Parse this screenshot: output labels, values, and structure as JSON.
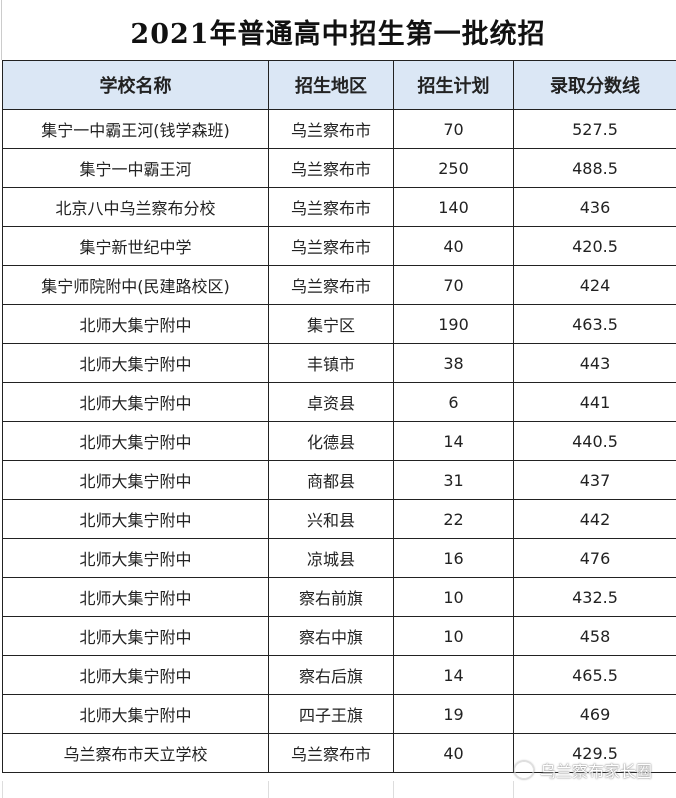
{
  "title": "2021年普通高中招生第一批统招",
  "columns": [
    "学校名称",
    "招生地区",
    "招生计划",
    "录取分数线"
  ],
  "rows": [
    [
      "集宁一中霸王河(钱学森班)",
      "乌兰察布市",
      "70",
      "527.5"
    ],
    [
      "集宁一中霸王河",
      "乌兰察布市",
      "250",
      "488.5"
    ],
    [
      "北京八中乌兰察布分校",
      "乌兰察布市",
      "140",
      "436"
    ],
    [
      "集宁新世纪中学",
      "乌兰察布市",
      "40",
      "420.5"
    ],
    [
      "集宁师院附中(民建路校区)",
      "乌兰察布市",
      "70",
      "424"
    ],
    [
      "北师大集宁附中",
      "集宁区",
      "190",
      "463.5"
    ],
    [
      "北师大集宁附中",
      "丰镇市",
      "38",
      "443"
    ],
    [
      "北师大集宁附中",
      "卓资县",
      "6",
      "441"
    ],
    [
      "北师大集宁附中",
      "化德县",
      "14",
      "440.5"
    ],
    [
      "北师大集宁附中",
      "商都县",
      "31",
      "437"
    ],
    [
      "北师大集宁附中",
      "兴和县",
      "22",
      "442"
    ],
    [
      "北师大集宁附中",
      "凉城县",
      "16",
      "476"
    ],
    [
      "北师大集宁附中",
      "察右前旗",
      "10",
      "432.5"
    ],
    [
      "北师大集宁附中",
      "察右中旗",
      "10",
      "458"
    ],
    [
      "北师大集宁附中",
      "察右后旗",
      "14",
      "465.5"
    ],
    [
      "北师大集宁附中",
      "四子王旗",
      "19",
      "469"
    ],
    [
      "乌兰察布市天立学校",
      "乌兰察布市",
      "40",
      "429.5"
    ]
  ],
  "watermark": "乌兰察布家长圈",
  "colors": {
    "header_bg": "#dbe7f5",
    "border": "#222222"
  }
}
